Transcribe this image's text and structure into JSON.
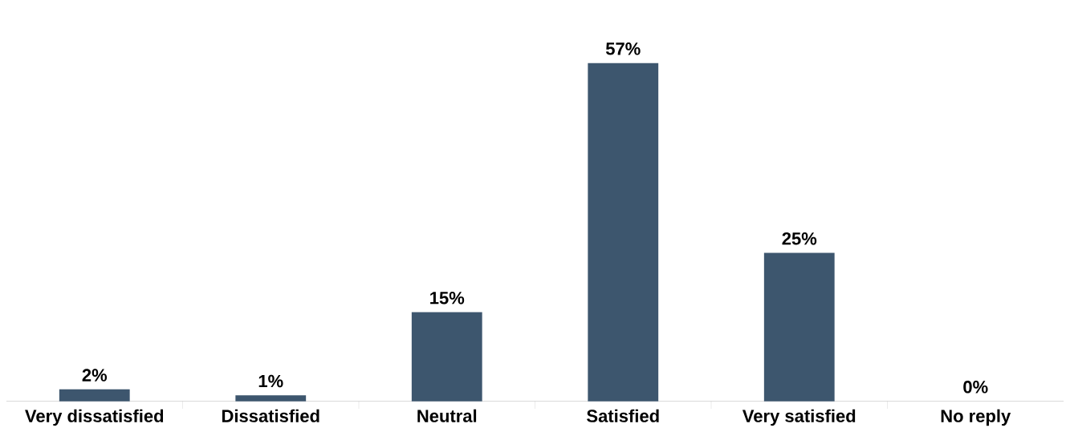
{
  "chart_data": {
    "type": "bar",
    "categories": [
      "Very dissatisfied",
      "Dissatisfied",
      "Neutral",
      "Satisfied",
      "Very satisfied",
      "No reply"
    ],
    "values": [
      2,
      1,
      15,
      57,
      25,
      0
    ],
    "value_labels": [
      "2%",
      "1%",
      "15%",
      "57%",
      "25%",
      "0%"
    ],
    "color": "#3d566e"
  }
}
